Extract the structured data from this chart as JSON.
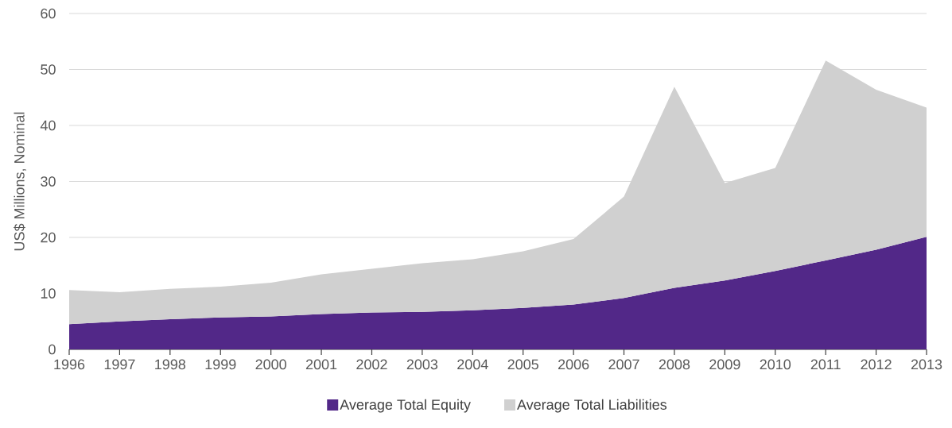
{
  "chart_data": {
    "type": "area",
    "stacked": true,
    "ylabel": "US$ Millions, Nominal",
    "categories": [
      "1996",
      "1997",
      "1998",
      "1999",
      "2000",
      "2001",
      "2002",
      "2003",
      "2004",
      "2005",
      "2006",
      "2007",
      "2008",
      "2009",
      "2010",
      "2011",
      "2012",
      "2013"
    ],
    "series": [
      {
        "name": "Average Total Equity",
        "color": "#522888",
        "values": [
          4.5,
          5.0,
          5.4,
          5.7,
          5.9,
          6.3,
          6.6,
          6.7,
          7.0,
          7.4,
          8.0,
          9.2,
          11.0,
          12.3,
          14.0,
          15.9,
          17.8,
          20.1
        ]
      },
      {
        "name": "Average Total Liabilities",
        "color": "#d0d0d0",
        "values": [
          6.1,
          5.2,
          5.4,
          5.5,
          6.0,
          7.1,
          7.8,
          8.7,
          9.1,
          10.1,
          11.7,
          18.1,
          35.9,
          17.4,
          18.4,
          35.7,
          28.6,
          23.1
        ]
      }
    ],
    "ylim": [
      0,
      60
    ],
    "yticks": [
      0,
      10,
      20,
      30,
      40,
      50,
      60
    ],
    "grid": "y",
    "legend": "bottom"
  }
}
